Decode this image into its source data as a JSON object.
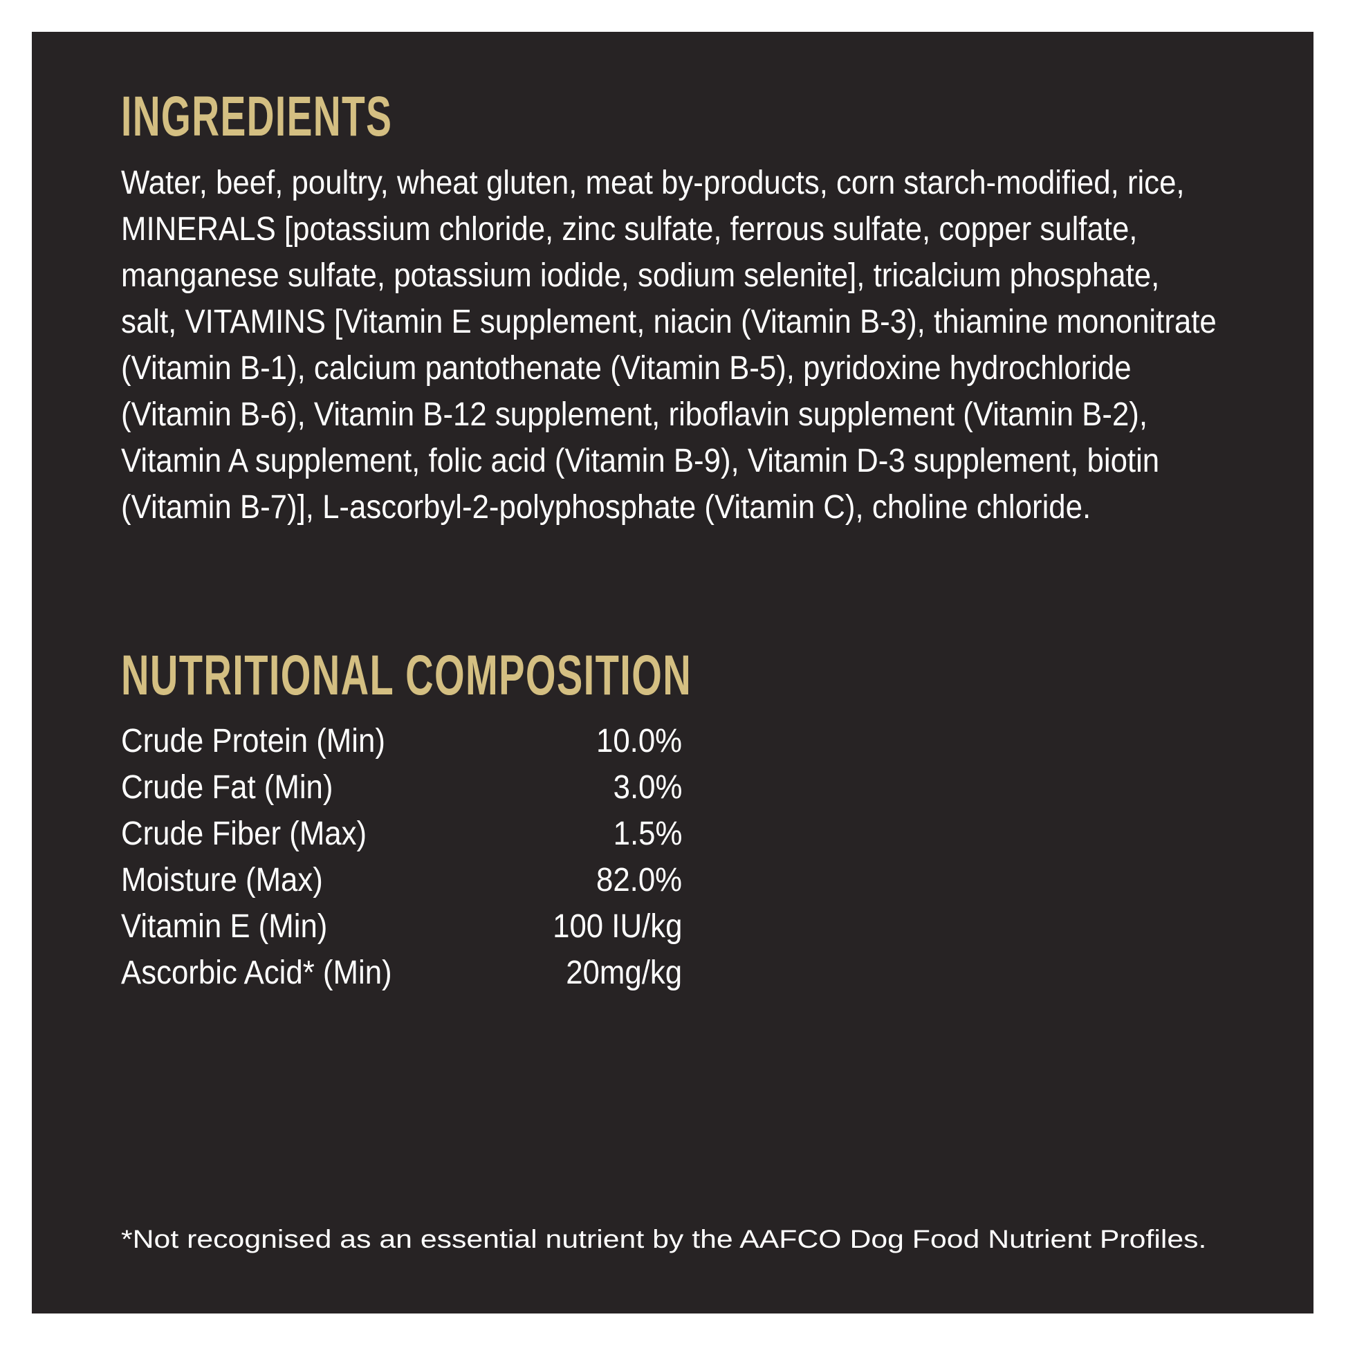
{
  "colors": {
    "background": "#272324",
    "heading": "#d4bf82",
    "text": "#ffffff"
  },
  "ingredients": {
    "title": "INGREDIENTS",
    "lines": [
      "Water, beef, poultry, wheat gluten, meat by-products, corn starch-modified, rice,",
      "MINERALS [potassium chloride, zinc sulfate, ferrous sulfate, copper sulfate,",
      "manganese sulfate, potassium iodide, sodium selenite], tricalcium phosphate,",
      "salt, VITAMINS [Vitamin E supplement, niacin (Vitamin B-3), thiamine mononitrate",
      "(Vitamin B-1), calcium pantothenate (Vitamin B-5), pyridoxine hydrochloride",
      "(Vitamin B-6), Vitamin B-12 supplement, riboflavin supplement (Vitamin B-2),",
      "Vitamin A supplement, folic acid (Vitamin B-9), Vitamin D-3 supplement, biotin",
      "(Vitamin B-7)], L-ascorbyl-2-polyphosphate (Vitamin C), choline chloride."
    ]
  },
  "nutrition": {
    "title": "NUTRITIONAL COMPOSITION",
    "rows": [
      {
        "label": "Crude Protein (Min)",
        "value": "10.0%"
      },
      {
        "label": "Crude Fat (Min)",
        "value": "3.0%"
      },
      {
        "label": "Crude Fiber (Max)",
        "value": "1.5%"
      },
      {
        "label": "Moisture (Max)",
        "value": "82.0%"
      },
      {
        "label": "Vitamin E (Min)",
        "value": "100 IU/kg"
      },
      {
        "label": "Ascorbic Acid* (Min)",
        "value": "20mg/kg"
      }
    ]
  },
  "footnote": "*Not recognised as an essential nutrient by the AAFCO Dog Food Nutrient Profiles."
}
